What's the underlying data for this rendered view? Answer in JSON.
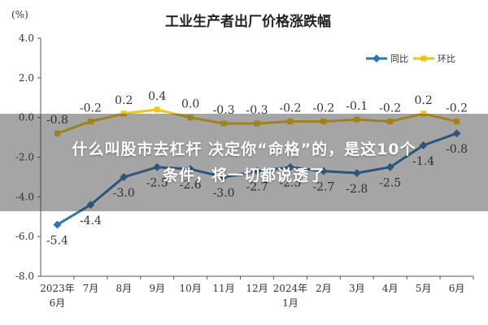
{
  "chart_data": {
    "type": "line",
    "title": "工业生产者出厂价格涨跌幅",
    "ylabel": "(%)",
    "categories": [
      "2023年\n6月",
      "7月",
      "8月",
      "9月",
      "10月",
      "11月",
      "12月",
      "2024年\n1月",
      "2月",
      "3月",
      "4月",
      "5月",
      "6月"
    ],
    "ylim": [
      -8.0,
      4.0
    ],
    "yticks": [
      "4.0",
      "2.0",
      "0.0",
      "-2.0",
      "-4.0",
      "-6.0",
      "-8.0"
    ],
    "legend_position": "top-right",
    "grid": false,
    "series": [
      {
        "name": "同比",
        "color": "#2e75b6",
        "values": [
          -5.4,
          -4.4,
          -3.0,
          -2.5,
          -2.6,
          -3.0,
          -2.7,
          -2.5,
          -2.7,
          -2.8,
          -2.5,
          -1.4,
          -0.8
        ],
        "labels": [
          "-5.4",
          "-4.4",
          "-3.0",
          "-2.5",
          "-2.6",
          "-3.0",
          "-2.7",
          "-2.5",
          "-2.7",
          "-2.8",
          "-2.5",
          "-1.4",
          "-0.8"
        ]
      },
      {
        "name": "环比",
        "color": "#f2c318",
        "values": [
          -0.8,
          -0.2,
          0.2,
          0.4,
          0.0,
          -0.3,
          -0.3,
          -0.2,
          -0.2,
          -0.1,
          -0.2,
          0.2,
          -0.2
        ],
        "labels": [
          "-0.8",
          "-0.2",
          "0.2",
          "0.4",
          "0.0",
          "-0.3",
          "-0.3",
          "-0.2",
          "-0.2",
          "-0.1",
          "-0.2",
          "0.2",
          "-0.2"
        ]
      }
    ]
  },
  "overlay": {
    "line1": "什么叫股市去杠杆 决定你“命格”的，是这10个",
    "line2": "条件，将一切都说透了"
  }
}
